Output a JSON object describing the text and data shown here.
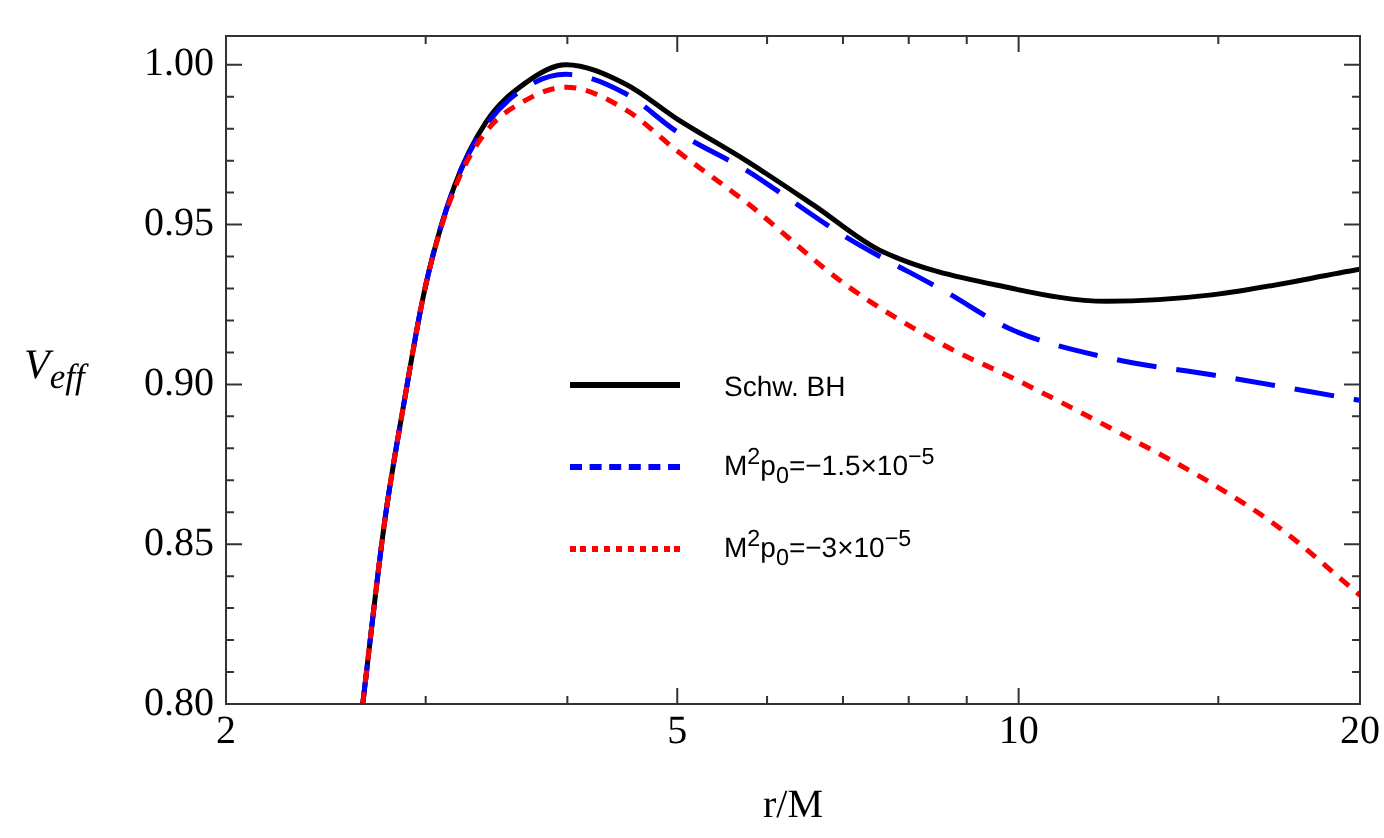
{
  "chart_data": {
    "type": "line",
    "xlabel": "r/M",
    "ylabel": "V$_{eff}$",
    "log": "x",
    "xlim": [
      2,
      20
    ],
    "ylim": [
      0.8,
      1.009
    ],
    "xticks": [
      2,
      {
        "value": 3,
        "label": null
      },
      {
        "value": 4,
        "label": null
      },
      5,
      {
        "value": 6,
        "label": null
      },
      {
        "value": 7,
        "label": null
      },
      {
        "value": 8,
        "label": null
      },
      {
        "value": 9,
        "label": null
      },
      10,
      {
        "value": 15,
        "label": null
      },
      20
    ],
    "yticks": [
      {
        "value": 0.8,
        "label": "0.80"
      },
      {
        "value": 0.81,
        "label": null
      },
      {
        "value": 0.82,
        "label": null
      },
      {
        "value": 0.83,
        "label": null
      },
      {
        "value": 0.84,
        "label": null
      },
      0.85,
      {
        "value": 0.86,
        "label": null
      },
      {
        "value": 0.87,
        "label": null
      },
      {
        "value": 0.88,
        "label": null
      },
      {
        "value": 0.89,
        "label": null
      },
      {
        "value": 0.9,
        "label": "0.90"
      },
      {
        "value": 0.91,
        "label": null
      },
      {
        "value": 0.92,
        "label": null
      },
      {
        "value": 0.93,
        "label": null
      },
      {
        "value": 0.94,
        "label": null
      },
      0.95,
      {
        "value": 0.96,
        "label": null
      },
      {
        "value": 0.97,
        "label": null
      },
      {
        "value": 0.98,
        "label": null
      },
      {
        "value": 0.99,
        "label": null
      },
      {
        "value": 1.0,
        "label": "1.00"
      }
    ],
    "grid": false,
    "legend": "bottom",
    "marker": "none",
    "series": [
      {
        "name": "Schw. BH",
        "color": "#000000",
        "line_style": "solid",
        "x": [
          2.64,
          2.76,
          2.87,
          3.0,
          3.18,
          3.39,
          3.68,
          3.99,
          4.5,
          5.0,
          5.75,
          6.6,
          7.54,
          9.88,
          11.96,
          14.8,
          20
        ],
        "values": [
          0.8,
          0.857,
          0.894,
          0.931,
          0.962,
          0.982,
          0.9945,
          1.0,
          0.994,
          0.983,
          0.97,
          0.956,
          0.942,
          0.93,
          0.926,
          0.928,
          0.936
        ]
      },
      {
        "name": "M$^{2}$p$_{0}$=−1.5×10$^{−5}$",
        "color": "#0000ff",
        "line_style": "dashed",
        "x": [
          2.64,
          2.76,
          2.87,
          3.0,
          3.18,
          3.39,
          3.68,
          3.99,
          4.5,
          5.0,
          5.75,
          7.05,
          8.62,
          9.88,
          12.1,
          14.8,
          20
        ],
        "values": [
          0.8,
          0.857,
          0.894,
          0.931,
          0.962,
          0.981,
          0.993,
          0.997,
          0.991,
          0.979,
          0.967,
          0.946,
          0.929,
          0.917,
          0.908,
          0.903,
          0.895
        ]
      },
      {
        "name": "M$^{2}$p$_{0}$=−3×10$^{−5}$",
        "color": "#ff0000",
        "line_style": "dotted",
        "x": [
          2.64,
          2.76,
          2.87,
          3.0,
          3.18,
          3.39,
          3.68,
          3.99,
          4.5,
          5.0,
          5.75,
          7.05,
          8.62,
          9.88,
          12.1,
          14.8,
          17.0,
          20
        ],
        "values": [
          0.8,
          0.857,
          0.894,
          0.931,
          0.961,
          0.979,
          0.989,
          0.993,
          0.986,
          0.973,
          0.957,
          0.931,
          0.912,
          0.902,
          0.886,
          0.869,
          0.855,
          0.834
        ]
      }
    ]
  }
}
